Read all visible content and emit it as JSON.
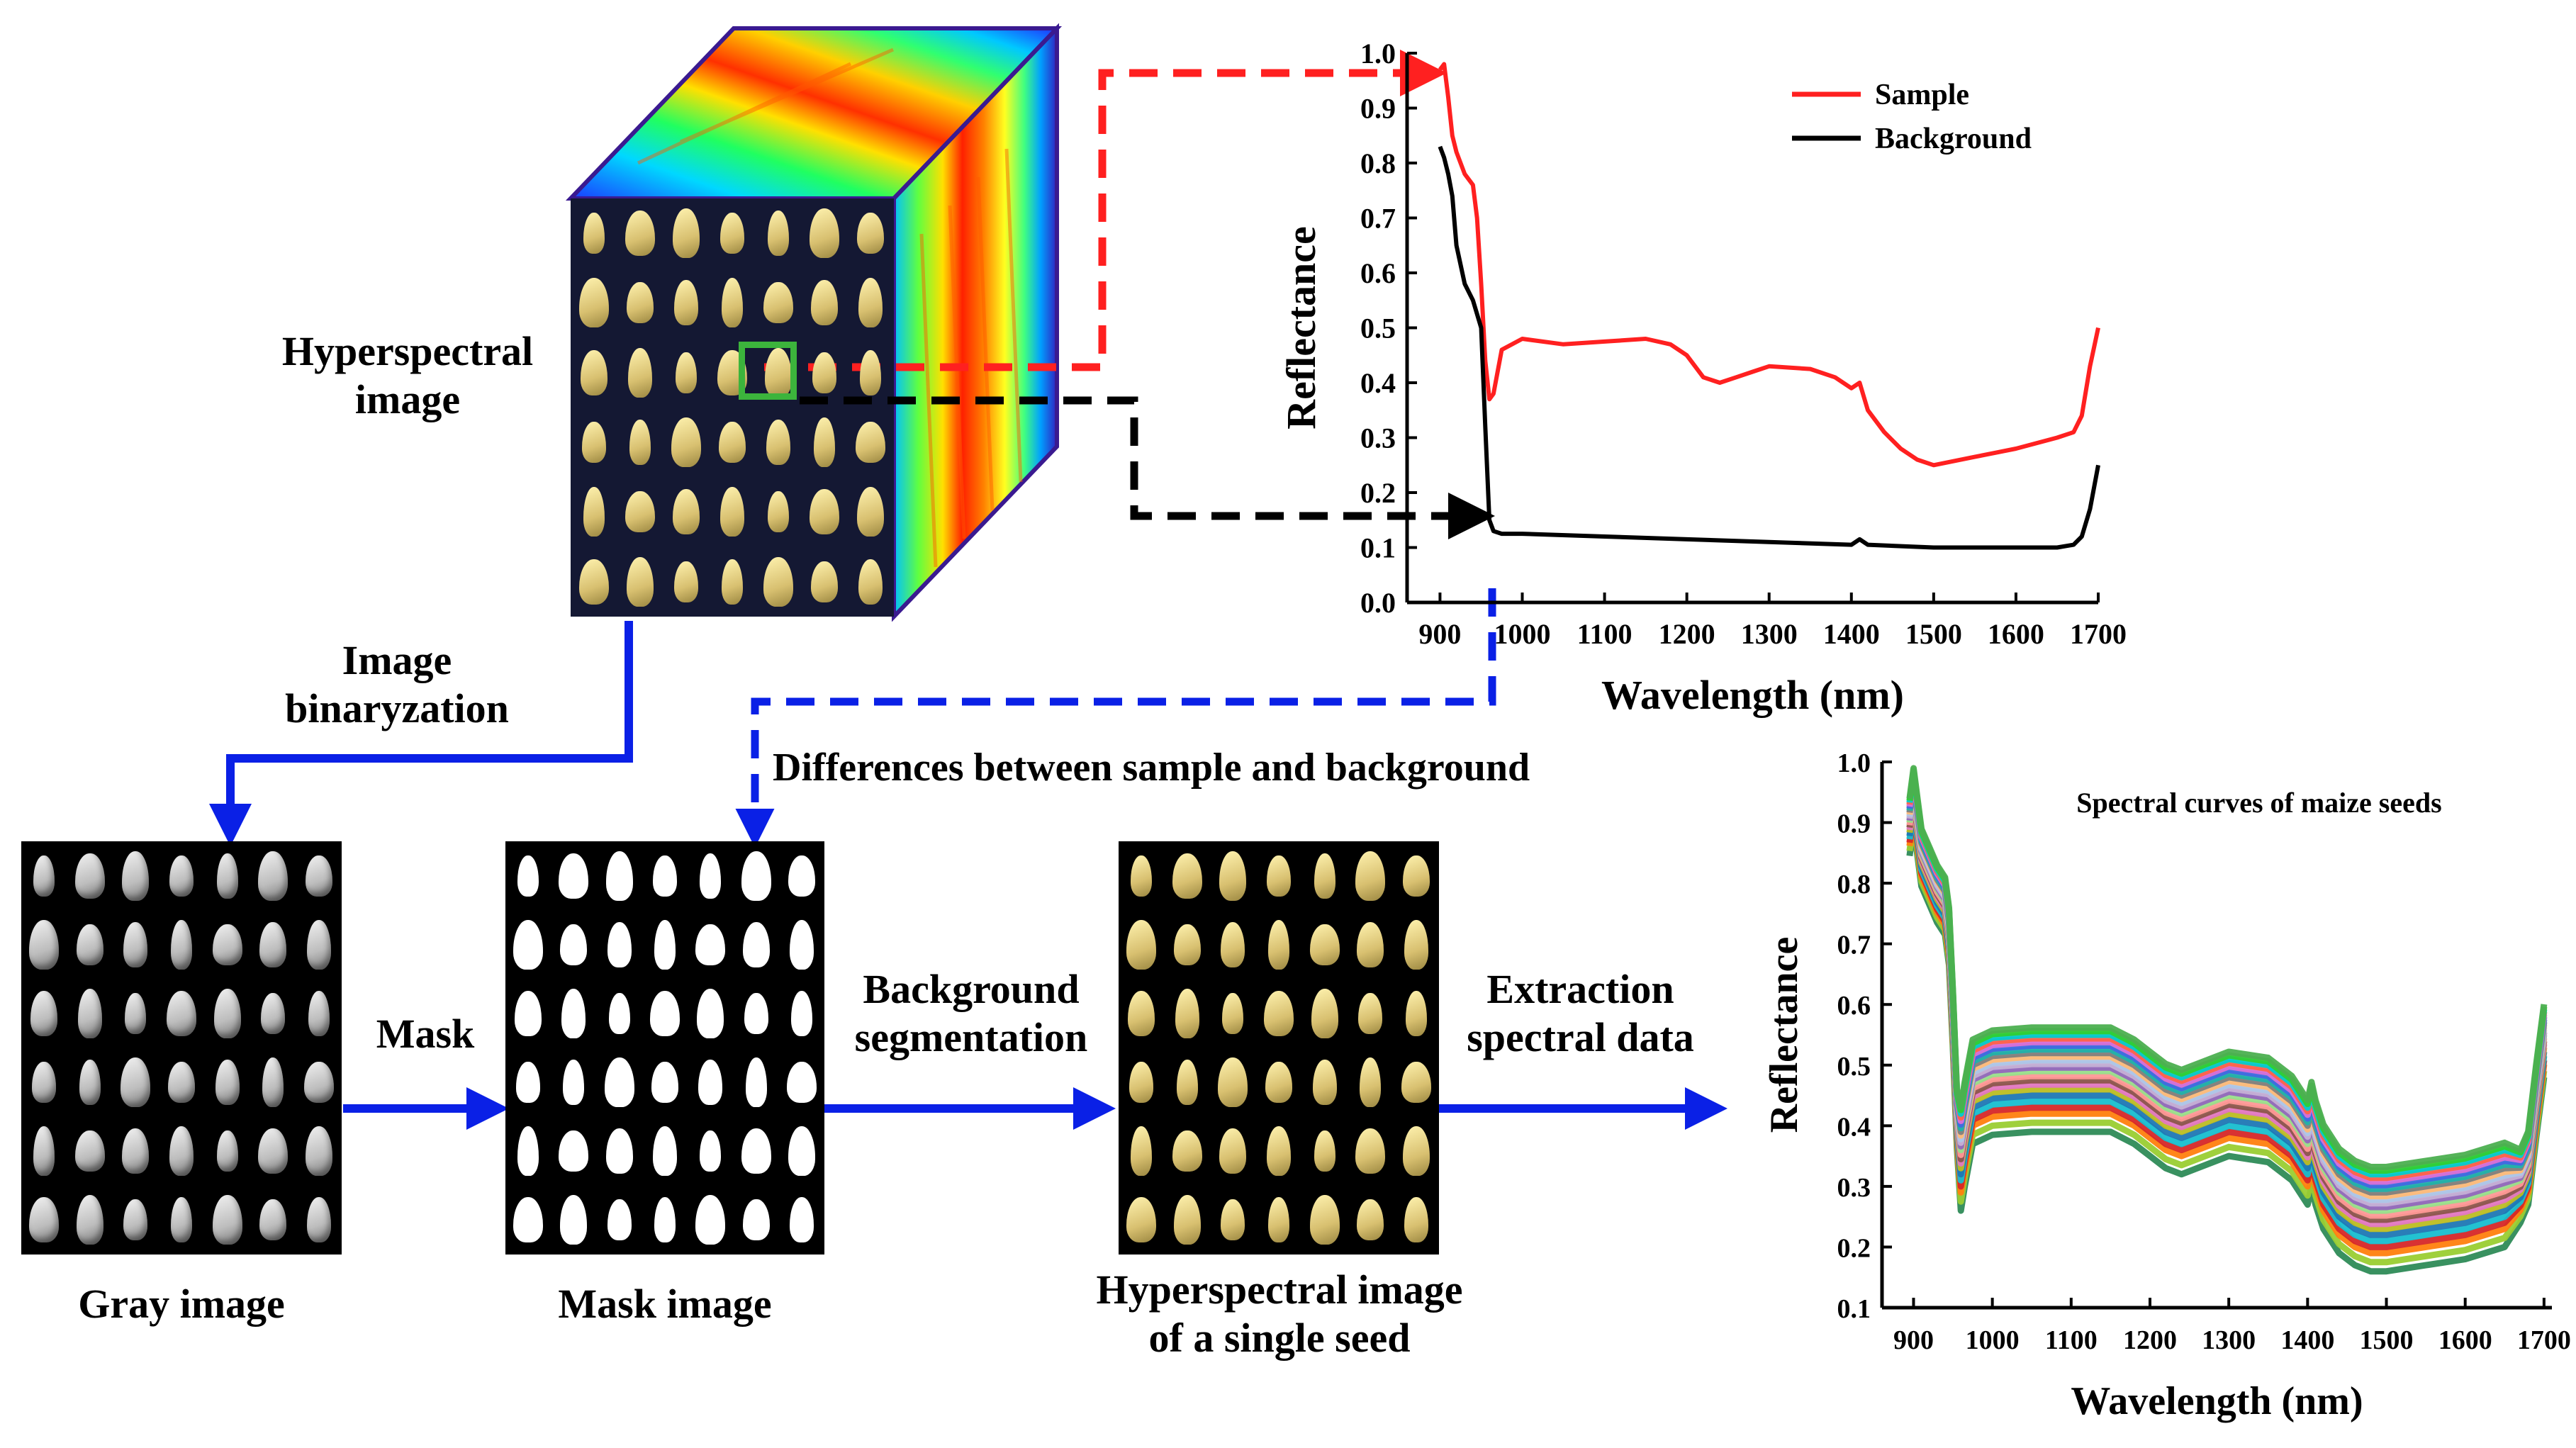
{
  "labels": {
    "hyperspectral_image_l1": "Hyperspectral",
    "hyperspectral_image_l2": "image",
    "image_binaryzation_l1": "Image",
    "image_binaryzation_l2": "binaryzation",
    "differences": "Differences between sample and background",
    "mask": "Mask",
    "background_segmentation_l1": "Background",
    "background_segmentation_l2": "segmentation",
    "extraction_l1": "Extraction",
    "extraction_l2": "spectral data",
    "gray_image": "Gray image",
    "mask_image": "Mask image",
    "single_seed_l1": "Hyperspectral image",
    "single_seed_l2": "of a single seed"
  },
  "colors": {
    "sample": "#ff2020",
    "background": "#000000",
    "flow_arrow": "#0a20e6",
    "roi_box": "#3cb43c"
  },
  "seed_grid": {
    "rows": 6,
    "cols": 7
  },
  "chart_data": [
    {
      "type": "line",
      "title": "",
      "xlabel": "Wavelength (nm)",
      "ylabel": "Reflectance",
      "xlim": [
        860,
        1700
      ],
      "ylim": [
        0,
        1.0
      ],
      "xticks": [
        900,
        1000,
        1100,
        1200,
        1300,
        1400,
        1500,
        1600,
        1700
      ],
      "yticks": [
        0.0,
        0.1,
        0.2,
        0.3,
        0.4,
        0.5,
        0.6,
        0.7,
        0.8,
        0.9,
        1.0
      ],
      "legend": "top-right",
      "series": [
        {
          "name": "Sample",
          "color": "#ff2020",
          "x": [
            900,
            905,
            910,
            915,
            920,
            930,
            940,
            945,
            950,
            955,
            960,
            965,
            975,
            1000,
            1050,
            1100,
            1150,
            1180,
            1200,
            1220,
            1240,
            1260,
            1280,
            1300,
            1350,
            1380,
            1400,
            1410,
            1420,
            1440,
            1460,
            1480,
            1500,
            1550,
            1600,
            1650,
            1670,
            1680,
            1690,
            1700
          ],
          "y": [
            0.97,
            0.98,
            0.92,
            0.85,
            0.82,
            0.78,
            0.76,
            0.7,
            0.58,
            0.44,
            0.37,
            0.38,
            0.46,
            0.48,
            0.47,
            0.475,
            0.48,
            0.47,
            0.45,
            0.41,
            0.4,
            0.41,
            0.42,
            0.43,
            0.425,
            0.41,
            0.39,
            0.4,
            0.35,
            0.31,
            0.28,
            0.26,
            0.25,
            0.265,
            0.28,
            0.3,
            0.31,
            0.34,
            0.43,
            0.5
          ]
        },
        {
          "name": "Background",
          "color": "#000000",
          "x": [
            900,
            905,
            910,
            915,
            920,
            930,
            940,
            950,
            955,
            960,
            965,
            975,
            1000,
            1100,
            1200,
            1300,
            1400,
            1410,
            1420,
            1500,
            1600,
            1650,
            1670,
            1680,
            1690,
            1700
          ],
          "y": [
            0.83,
            0.81,
            0.78,
            0.74,
            0.65,
            0.58,
            0.55,
            0.5,
            0.32,
            0.15,
            0.13,
            0.125,
            0.125,
            0.12,
            0.115,
            0.11,
            0.105,
            0.115,
            0.105,
            0.1,
            0.1,
            0.1,
            0.105,
            0.12,
            0.17,
            0.25
          ]
        }
      ]
    },
    {
      "type": "line",
      "title": "Spectral curves of maize seeds",
      "xlabel": "Wavelength (nm)",
      "ylabel": "Reflectance",
      "xlim": [
        860,
        1710
      ],
      "ylim": [
        0.1,
        1.0
      ],
      "xticks": [
        900,
        1000,
        1100,
        1200,
        1300,
        1400,
        1500,
        1600,
        1700
      ],
      "yticks": [
        0.1,
        0.2,
        0.3,
        0.4,
        0.5,
        0.6,
        0.7,
        0.8,
        0.9,
        1.0
      ],
      "legend": "none",
      "base_curve": {
        "x": [
          895,
          900,
          905,
          910,
          920,
          930,
          940,
          945,
          950,
          955,
          960,
          965,
          975,
          1000,
          1050,
          1100,
          1150,
          1180,
          1200,
          1220,
          1240,
          1260,
          1300,
          1350,
          1380,
          1400,
          1405,
          1410,
          1420,
          1440,
          1460,
          1480,
          1500,
          1550,
          1600,
          1650,
          1670,
          1680,
          1690,
          1700
        ],
        "y": [
          0.9,
          0.95,
          0.9,
          0.85,
          0.82,
          0.79,
          0.77,
          0.72,
          0.58,
          0.42,
          0.36,
          0.4,
          0.47,
          0.485,
          0.49,
          0.49,
          0.49,
          0.47,
          0.45,
          0.43,
          0.42,
          0.43,
          0.45,
          0.44,
          0.41,
          0.37,
          0.4,
          0.37,
          0.33,
          0.29,
          0.27,
          0.26,
          0.26,
          0.27,
          0.28,
          0.3,
          0.31,
          0.34,
          0.45,
          0.55
        ]
      },
      "offsets": [
        -0.1,
        -0.085,
        -0.07,
        -0.06,
        -0.05,
        -0.04,
        -0.03,
        -0.022,
        -0.015,
        -0.008,
        0.0,
        0.006,
        0.012,
        0.018,
        0.024,
        0.03,
        0.036,
        0.042,
        0.048,
        0.054,
        0.06,
        0.066,
        0.072
      ],
      "series_colors": [
        "#2e8b57",
        "#9acd32",
        "#ff7f0e",
        "#d62728",
        "#17becf",
        "#1f77b4",
        "#bcbd22",
        "#e377c2",
        "#8c564b",
        "#ff9896",
        "#98df8a",
        "#9467bd",
        "#c5b0d5",
        "#aec7e8",
        "#ffbb78",
        "#7f7f7f",
        "#20b2aa",
        "#4169e1",
        "#da70d6",
        "#ff6347",
        "#00ced1",
        "#32cd32",
        "#4caf50"
      ]
    }
  ]
}
